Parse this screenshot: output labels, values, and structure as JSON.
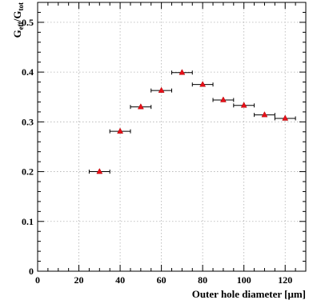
{
  "chart_data": {
    "type": "scatter",
    "title": "",
    "xlabel": "Outer hole diameter [μm]",
    "ylabel_main": "G",
    "ylabel_sub1": "eff",
    "ylabel_mid": "/G",
    "ylabel_sub2": "tot",
    "xlim": [
      0,
      130
    ],
    "ylim": [
      0,
      0.54
    ],
    "grid": true,
    "xticks": [
      0,
      20,
      40,
      60,
      80,
      100,
      120
    ],
    "yticks": [
      0,
      0.1,
      0.2,
      0.3,
      0.4,
      0.5
    ],
    "xtick_labels": [
      "0",
      "20",
      "40",
      "60",
      "80",
      "100",
      "120"
    ],
    "ytick_labels": [
      "0",
      "0.1",
      "0.2",
      "0.3",
      "0.4",
      "0.5"
    ],
    "x_error": 5,
    "marker_color": "#e8101a",
    "series": [
      {
        "x": [
          30,
          40,
          50,
          60,
          70,
          80,
          90,
          100,
          110,
          120
        ],
        "y": [
          0.2,
          0.281,
          0.33,
          0.363,
          0.399,
          0.375,
          0.344,
          0.333,
          0.314,
          0.307
        ]
      }
    ]
  }
}
